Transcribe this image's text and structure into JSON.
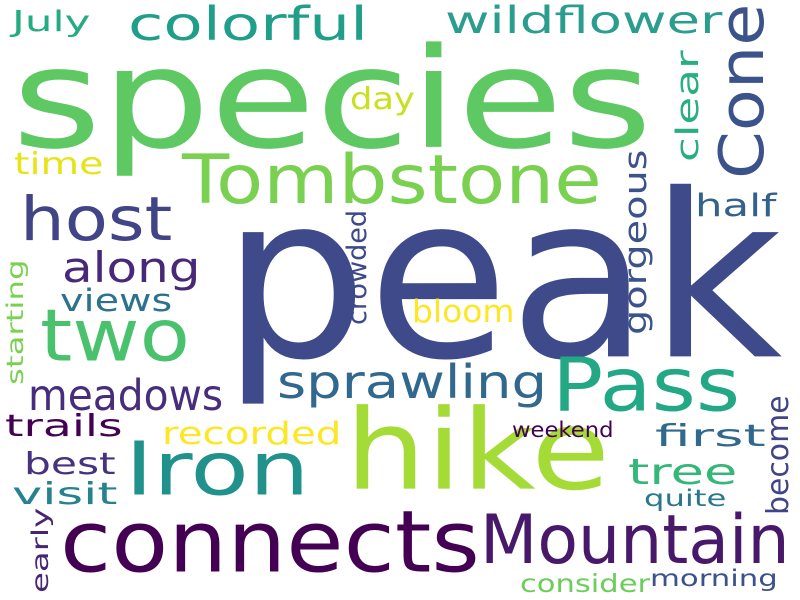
{
  "words": [
    {
      "id": "peak",
      "text": "peak",
      "color": "#3e4a89"
    },
    {
      "id": "species",
      "text": "species",
      "color": "#5ec962"
    },
    {
      "id": "hike",
      "text": "hike",
      "color": "#a5db36"
    },
    {
      "id": "connects",
      "text": "connects",
      "color": "#440154"
    },
    {
      "id": "mountain",
      "text": "Mountain",
      "color": "#48186a"
    },
    {
      "id": "tombstone",
      "text": "Tombstone",
      "color": "#7ad151"
    },
    {
      "id": "cone",
      "text": "Cone",
      "color": "#3b528b"
    },
    {
      "id": "iron",
      "text": "Iron",
      "color": "#21918c"
    },
    {
      "id": "pass",
      "text": "Pass",
      "color": "#22a884"
    },
    {
      "id": "two",
      "text": "two",
      "color": "#4ac16d"
    },
    {
      "id": "host",
      "text": "host",
      "color": "#414487"
    },
    {
      "id": "colorful",
      "text": "colorful",
      "color": "#1f9e89"
    },
    {
      "id": "wildflower",
      "text": "wildflower",
      "color": "#2a9d8f"
    },
    {
      "id": "sprawling",
      "text": "sprawling",
      "color": "#31688e"
    },
    {
      "id": "meadows",
      "text": "meadows",
      "color": "#472d7b"
    },
    {
      "id": "along",
      "text": "along",
      "color": "#482878"
    },
    {
      "id": "views",
      "text": "views",
      "color": "#2c728e"
    },
    {
      "id": "recorded",
      "text": "recorded",
      "color": "#fde725"
    },
    {
      "id": "trails",
      "text": "trails",
      "color": "#440154"
    },
    {
      "id": "best",
      "text": "best",
      "color": "#46327e"
    },
    {
      "id": "visit",
      "text": "visit",
      "color": "#26828e"
    },
    {
      "id": "tree",
      "text": "tree",
      "color": "#35b779"
    },
    {
      "id": "first",
      "text": "first",
      "color": "#31688e"
    },
    {
      "id": "half",
      "text": "half",
      "color": "#33638d"
    },
    {
      "id": "gorgeous",
      "text": "gorgeous",
      "color": "#3b528b"
    },
    {
      "id": "clear",
      "text": "clear",
      "color": "#29af7f"
    },
    {
      "id": "day",
      "text": "day",
      "color": "#c8e020"
    },
    {
      "id": "time",
      "text": "time",
      "color": "#e5e419"
    },
    {
      "id": "july",
      "text": "July",
      "color": "#25ab82"
    },
    {
      "id": "bloom",
      "text": "bloom",
      "color": "#fde725"
    },
    {
      "id": "crowded",
      "text": "crowded",
      "color": "#3e4989"
    },
    {
      "id": "starting",
      "text": "starting",
      "color": "#7ad151"
    },
    {
      "id": "weekend",
      "text": "weekend",
      "color": "#440154"
    },
    {
      "id": "become",
      "text": "become",
      "color": "#414487"
    },
    {
      "id": "quite",
      "text": "quite",
      "color": "#2a788e"
    },
    {
      "id": "early",
      "text": "early",
      "color": "#482475"
    },
    {
      "id": "consider",
      "text": "consider",
      "color": "#6ccd5a"
    },
    {
      "id": "morning",
      "text": "morning",
      "color": "#3b528b"
    }
  ]
}
